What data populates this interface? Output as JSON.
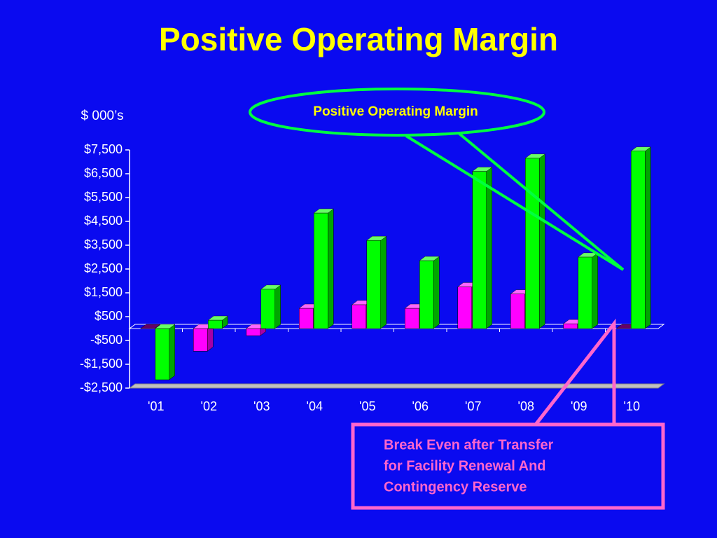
{
  "chart_data": {
    "type": "bar",
    "title": "Positive Operating Margin",
    "y_axis_label": "$ 000’s",
    "categories": [
      "'01",
      "'02",
      "'03",
      "'04",
      "'05",
      "'06",
      "'07",
      "'08",
      "'09",
      "'10"
    ],
    "series": [
      {
        "color": "#ff00ff",
        "values": [
          0,
          -950,
          -300,
          850,
          1000,
          850,
          1750,
          1450,
          200,
          0
        ]
      },
      {
        "color": "#00ff00",
        "values": [
          -2150,
          350,
          1650,
          4850,
          3700,
          2850,
          6600,
          7150,
          3000,
          7450
        ]
      }
    ],
    "ylim": [
      -2500,
      7500
    ],
    "yticks": [
      {
        "value": 7500,
        "label": "$7,500"
      },
      {
        "value": 6500,
        "label": "$6,500"
      },
      {
        "value": 5500,
        "label": "$5,500"
      },
      {
        "value": 4500,
        "label": "$4,500"
      },
      {
        "value": 3500,
        "label": "$3,500"
      },
      {
        "value": 2500,
        "label": "$2,500"
      },
      {
        "value": 1500,
        "label": "$1,500"
      },
      {
        "value": 500,
        "label": "$500"
      },
      {
        "value": -500,
        "label": "-$500"
      },
      {
        "value": -1500,
        "label": "-$1,500"
      },
      {
        "value": -2500,
        "label": "-$2,500"
      }
    ],
    "grid": false,
    "annotations": [
      {
        "text": "Positive Operating Margin"
      },
      {
        "lines": [
          "Break Even after Transfer",
          "for Facility Renewal And",
          "Contingency Reserve"
        ]
      }
    ]
  }
}
